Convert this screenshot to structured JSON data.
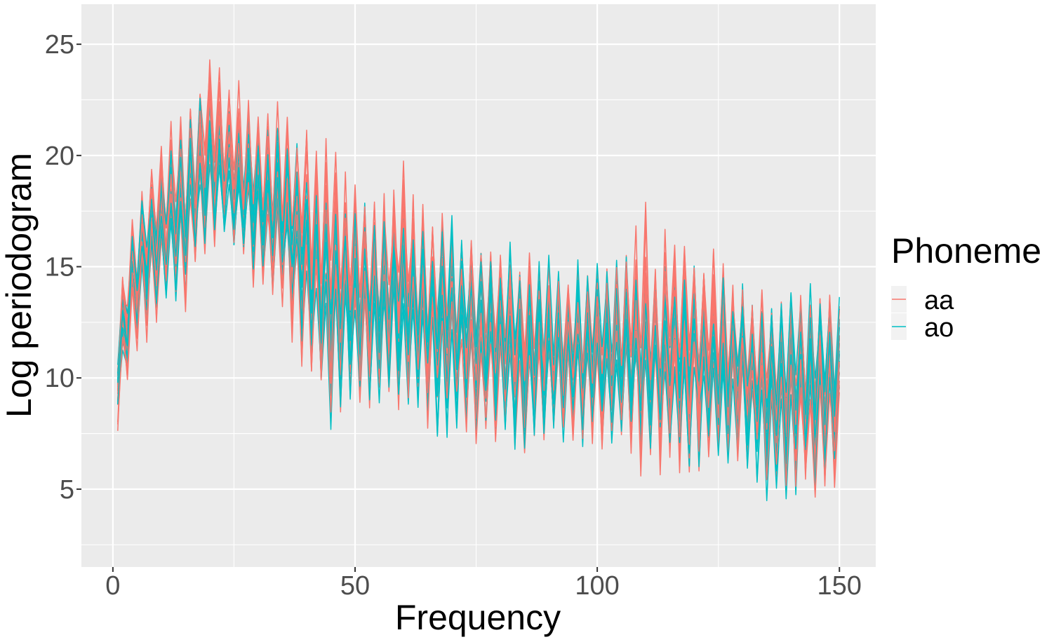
{
  "chart_data": {
    "type": "line",
    "title": "",
    "xlabel": "Frequency",
    "ylabel": "Log periodogram",
    "xlim": [
      -6.5,
      157.5
    ],
    "ylim": [
      1.5,
      26.8
    ],
    "x_ticks": [
      0,
      50,
      100,
      150
    ],
    "y_ticks": [
      5,
      10,
      15,
      20,
      25
    ],
    "grid": true,
    "legend": {
      "title": "Phoneme",
      "position": "right"
    },
    "x_range": [
      1,
      150
    ],
    "series": [
      {
        "name": "aa",
        "color": "#F8766D",
        "count": 15,
        "values_note_excluded": true,
        "envelope": [
          [
            1,
            6.5,
            14.7
          ],
          [
            5,
            10,
            19.5
          ],
          [
            10,
            11.5,
            22
          ],
          [
            15,
            12,
            23
          ],
          [
            20,
            15,
            25.6
          ],
          [
            25,
            14.5,
            25
          ],
          [
            30,
            13,
            23.5
          ],
          [
            35,
            12,
            23.5
          ],
          [
            40,
            8,
            23.6
          ],
          [
            45,
            7,
            23
          ],
          [
            50,
            6.7,
            20
          ],
          [
            55,
            6.5,
            20.2
          ],
          [
            60,
            6.5,
            21.9
          ],
          [
            65,
            6.3,
            19
          ],
          [
            70,
            6.3,
            18
          ],
          [
            75,
            6,
            17.5
          ],
          [
            80,
            6,
            17
          ],
          [
            85,
            5.5,
            17
          ],
          [
            90,
            6,
            16.5
          ],
          [
            95,
            6,
            16
          ],
          [
            100,
            5.5,
            17
          ],
          [
            105,
            5.5,
            17.5
          ],
          [
            110,
            3.6,
            19.6
          ],
          [
            115,
            4.5,
            18
          ],
          [
            120,
            4,
            18
          ],
          [
            125,
            5,
            17
          ],
          [
            130,
            4.5,
            15.5
          ],
          [
            135,
            4,
            15
          ],
          [
            140,
            3,
            15
          ],
          [
            145,
            3,
            15.5
          ],
          [
            150,
            3.2,
            15
          ]
        ]
      },
      {
        "name": "ao",
        "color": "#00BFC4",
        "count": 15,
        "envelope": [
          [
            1,
            8,
            13
          ],
          [
            5,
            10.5,
            19
          ],
          [
            10,
            12,
            21
          ],
          [
            15,
            13,
            22.5
          ],
          [
            20,
            15.5,
            24.5
          ],
          [
            25,
            15,
            23
          ],
          [
            30,
            13.5,
            23
          ],
          [
            35,
            12,
            23
          ],
          [
            40,
            9.5,
            21
          ],
          [
            45,
            6.5,
            20
          ],
          [
            50,
            7,
            19
          ],
          [
            55,
            7.5,
            18.5
          ],
          [
            60,
            7.5,
            18.5
          ],
          [
            65,
            6.5,
            18
          ],
          [
            70,
            6,
            18.8
          ],
          [
            75,
            5.6,
            18
          ],
          [
            80,
            5.8,
            17.3
          ],
          [
            85,
            5.2,
            17
          ],
          [
            90,
            6.2,
            16.5
          ],
          [
            95,
            6,
            16.5
          ],
          [
            100,
            5.8,
            16.5
          ],
          [
            105,
            5.5,
            16.5
          ],
          [
            110,
            5.8,
            16
          ],
          [
            115,
            5.5,
            16
          ],
          [
            120,
            5,
            16
          ],
          [
            125,
            5,
            15.5
          ],
          [
            130,
            4.5,
            15
          ],
          [
            135,
            3.5,
            14.5
          ],
          [
            140,
            3.5,
            15.8
          ],
          [
            145,
            4,
            15.5
          ],
          [
            150,
            4,
            15
          ]
        ]
      }
    ]
  }
}
